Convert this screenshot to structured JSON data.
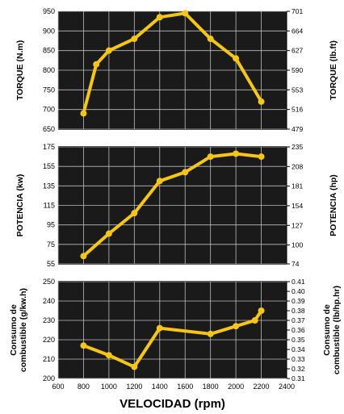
{
  "chart_data": {
    "type": "line",
    "xlabel": "VELOCIDAD (rpm)",
    "x_ticks": [
      "600",
      "800",
      "1000",
      "1200",
      "1400",
      "1600",
      "1800",
      "2000",
      "2200",
      "2400"
    ],
    "xlim": [
      600,
      2400
    ],
    "line_color": "#f5c518",
    "background": "#1a1a1a",
    "grid": true,
    "panels": [
      {
        "ylabel_left": [
          "TORQUE (N.m)"
        ],
        "ylabel_right": [
          "TORQUE (lb.ft)"
        ],
        "ylim": [
          650,
          950
        ],
        "y_ticks": [
          "650",
          "700",
          "750",
          "800",
          "850",
          "900",
          "950"
        ],
        "right_ylim": [
          479,
          701
        ],
        "right_ticks": [
          "479",
          "516",
          "553",
          "590",
          "627",
          "664",
          "701"
        ],
        "x": [
          800,
          900,
          1000,
          1200,
          1400,
          1600,
          1800,
          2000,
          2200
        ],
        "values": [
          690,
          815,
          850,
          880,
          935,
          945,
          880,
          830,
          720
        ]
      },
      {
        "ylabel_left": [
          "POTENCIA (kw)"
        ],
        "ylabel_right": [
          "POTENCIA (hp)"
        ],
        "ylim": [
          55,
          175
        ],
        "y_ticks": [
          "55",
          "75",
          "95",
          "115",
          "135",
          "155",
          "175"
        ],
        "right_ylim": [
          74,
          235
        ],
        "right_ticks": [
          "74",
          "100",
          "127",
          "154",
          "181",
          "208",
          "235"
        ],
        "x": [
          800,
          1000,
          1200,
          1400,
          1600,
          1800,
          2000,
          2200
        ],
        "values": [
          63,
          86,
          107,
          140,
          149,
          165,
          168,
          165
        ]
      },
      {
        "ylabel_left": [
          "Consumo de",
          "combustible (g/kw.h)"
        ],
        "ylabel_right": [
          "Consumo de",
          "combustible (lb/hp.hr)"
        ],
        "ylim": [
          200,
          250
        ],
        "y_ticks": [
          "200",
          "210",
          "220",
          "230",
          "240",
          "250"
        ],
        "right_ylim": [
          0.31,
          0.41
        ],
        "right_ticks": [
          "0.31",
          "0.32",
          "0.33",
          "0.34",
          "0.35",
          "0.36",
          "0.37",
          "0.38",
          "0.39",
          "0.40",
          "0.41"
        ],
        "x": [
          800,
          1000,
          1200,
          1400,
          1800,
          2000,
          2150,
          2200
        ],
        "values": [
          217,
          212,
          206,
          226,
          223,
          227,
          230,
          235
        ]
      }
    ]
  }
}
